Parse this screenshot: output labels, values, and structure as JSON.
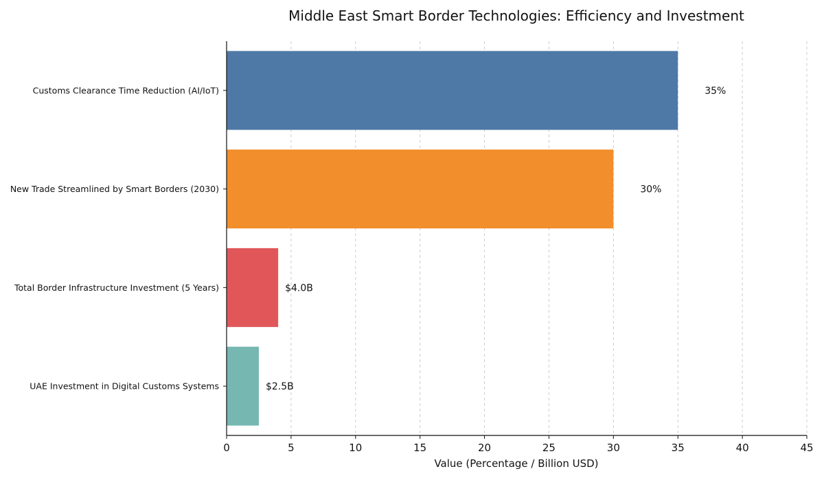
{
  "chart_data": {
    "type": "bar",
    "orientation": "horizontal",
    "title": "Middle East Smart Border Technologies: Efficiency and Investment",
    "xlabel": "Value (Percentage / Billion USD)",
    "ylabel": "",
    "xlim": [
      0,
      45
    ],
    "xticks": [
      0,
      5,
      10,
      15,
      20,
      25,
      30,
      35,
      40,
      45
    ],
    "grid": "x-dashed",
    "categories": [
      "Customs Clearance Time Reduction (AI/IoT)",
      "New Trade Streamlined by Smart Borders (2030)",
      "Total Border Infrastructure Investment (5 Years)",
      "UAE Investment in Digital Customs Systems"
    ],
    "values": [
      35,
      30,
      4.0,
      2.5
    ],
    "data_labels": [
      "35%",
      "30%",
      "$4.0B",
      "$2.5B"
    ],
    "colors": [
      "#4e79a7",
      "#f28e2b",
      "#e15759",
      "#76b7b2"
    ]
  }
}
